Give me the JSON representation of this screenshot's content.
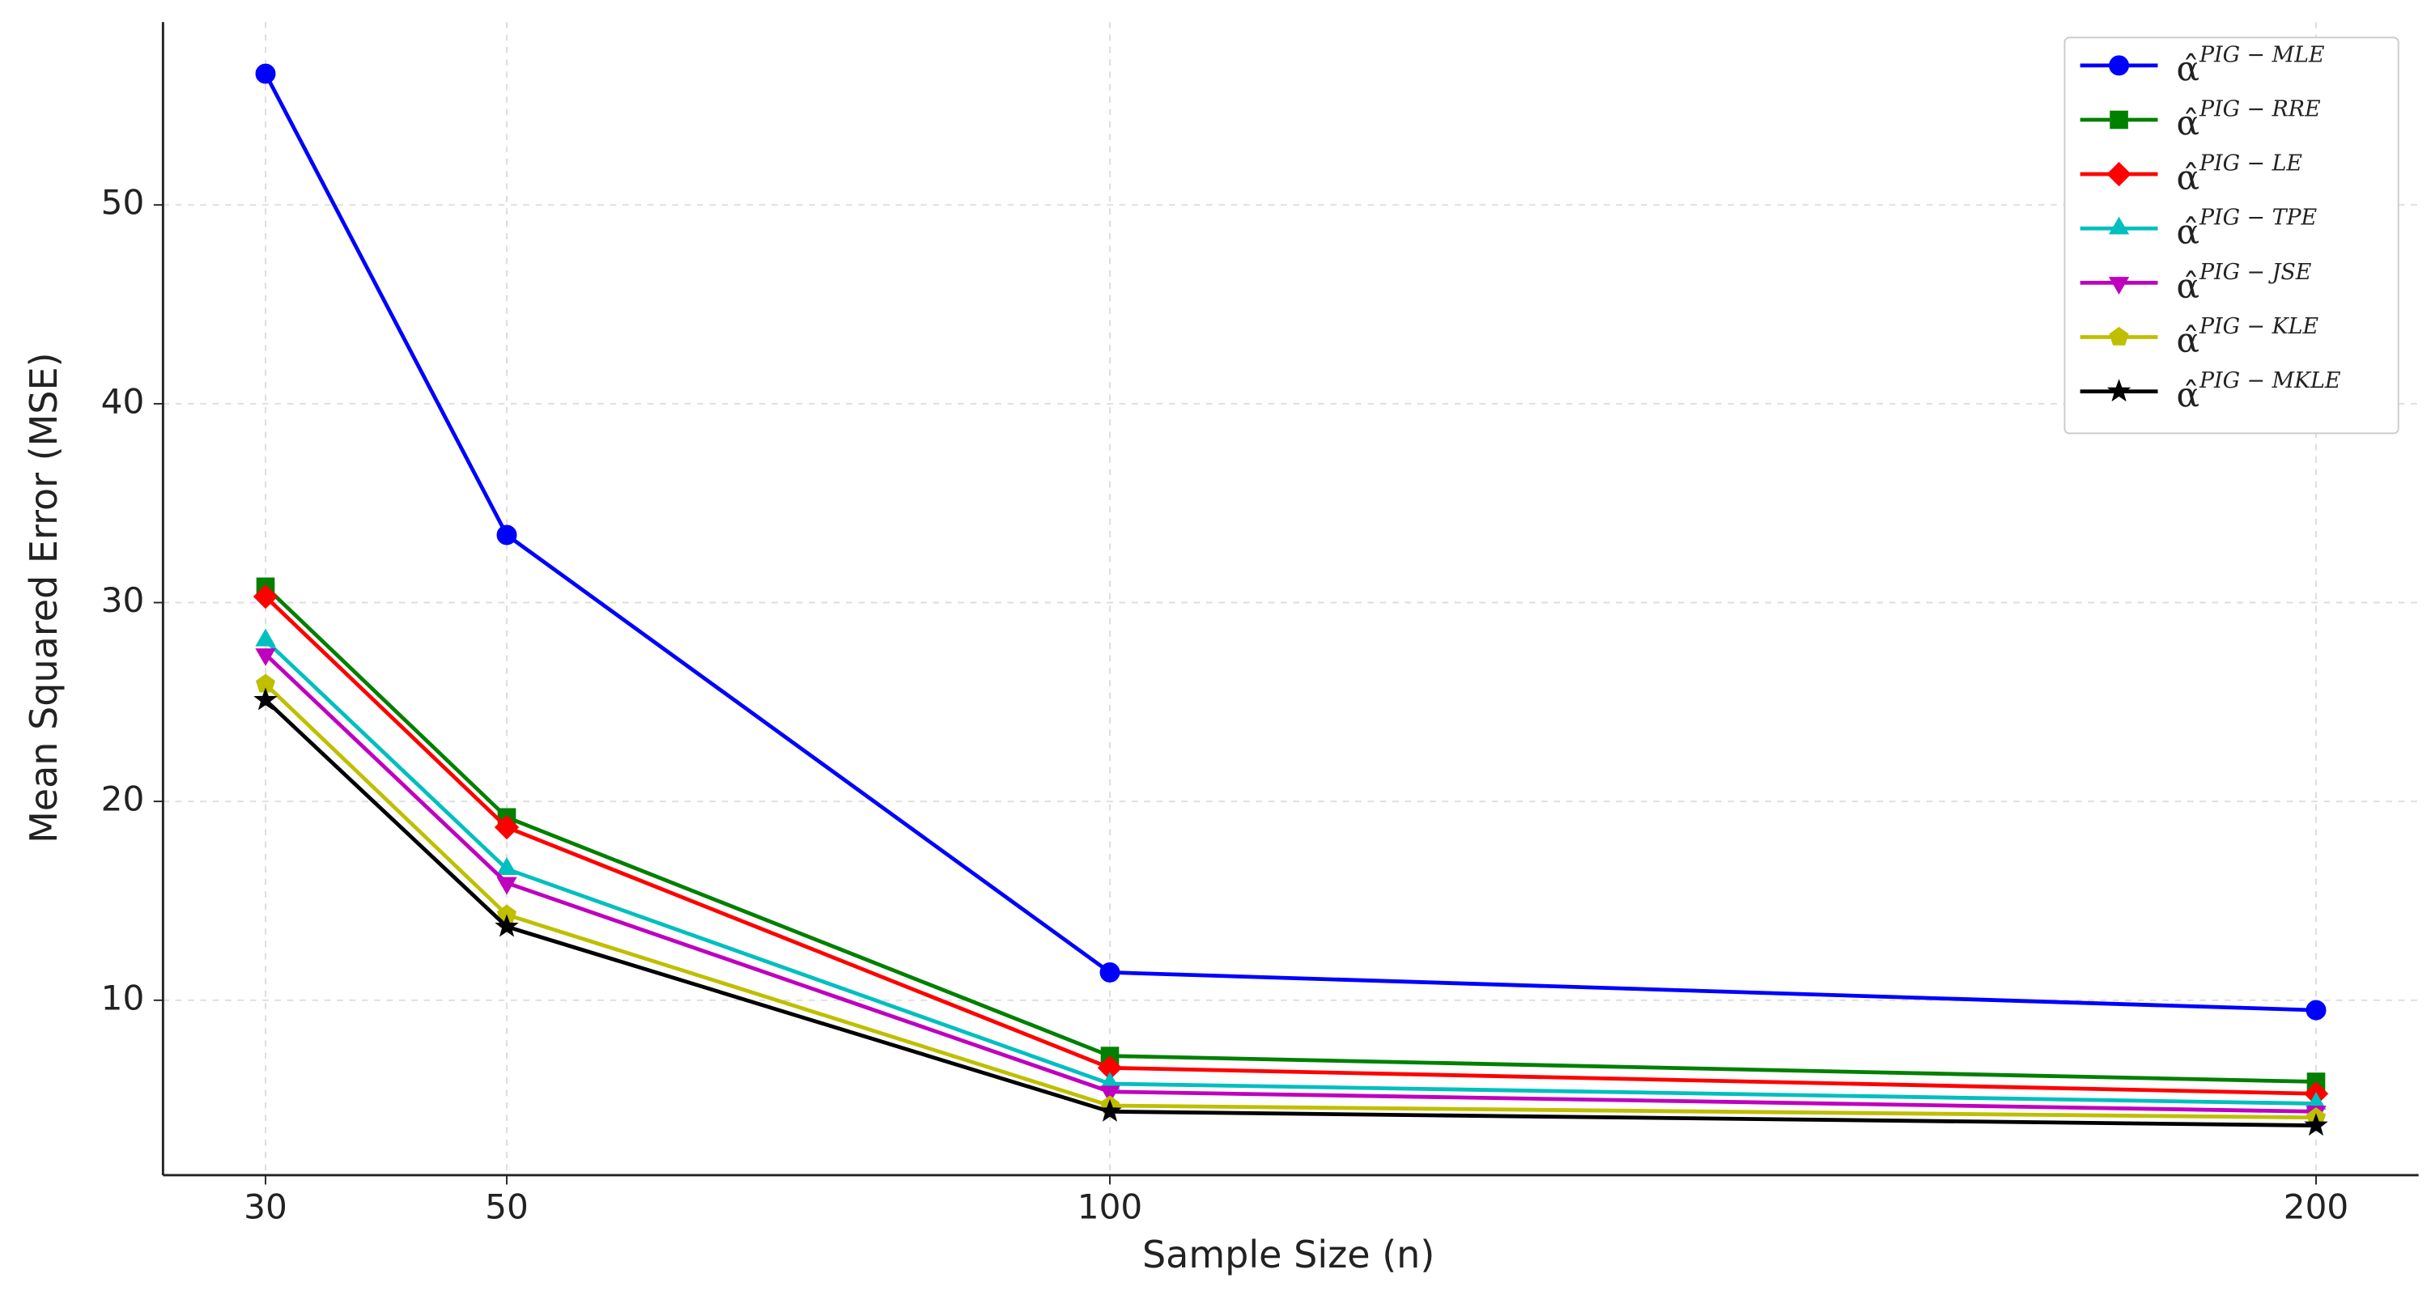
{
  "chart_data": {
    "type": "line",
    "xlabel": "Sample Size (n)",
    "ylabel": "Mean Squared Error (MSE)",
    "x": [
      30,
      50,
      100,
      200
    ],
    "xlim": [
      21.5,
      208.5
    ],
    "xticks": [
      30,
      50,
      100,
      200
    ],
    "ylim": [
      1.2,
      59.2
    ],
    "yticks": [
      10,
      20,
      30,
      40,
      50
    ],
    "grid": true,
    "legend": "upper right",
    "series": [
      {
        "name": "α̂PIG − MLE",
        "color": "#0000ff",
        "marker": "circle",
        "values": [
          56.6,
          33.4,
          11.4,
          9.5
        ]
      },
      {
        "name": "α̂PIG − RRE",
        "color": "#008000",
        "marker": "square",
        "values": [
          30.8,
          19.2,
          7.2,
          5.9
        ]
      },
      {
        "name": "α̂PIG − LE",
        "color": "#ff0000",
        "marker": "diamond",
        "values": [
          30.3,
          18.7,
          6.6,
          5.3
        ]
      },
      {
        "name": "α̂PIG − TPE",
        "color": "#00bfbf",
        "marker": "triangle-up",
        "values": [
          28.1,
          16.6,
          5.8,
          4.8
        ]
      },
      {
        "name": "α̂PIG − JSE",
        "color": "#bf00bf",
        "marker": "triangle-down",
        "values": [
          27.4,
          15.9,
          5.4,
          4.4
        ]
      },
      {
        "name": "α̂PIG − KLE",
        "color": "#bfbf00",
        "marker": "pentagon",
        "values": [
          25.9,
          14.3,
          4.7,
          4.1
        ]
      },
      {
        "name": "α̂PIG − MKLE",
        "color": "#000000",
        "marker": "star",
        "values": [
          25.1,
          13.7,
          4.4,
          3.7
        ]
      }
    ]
  }
}
